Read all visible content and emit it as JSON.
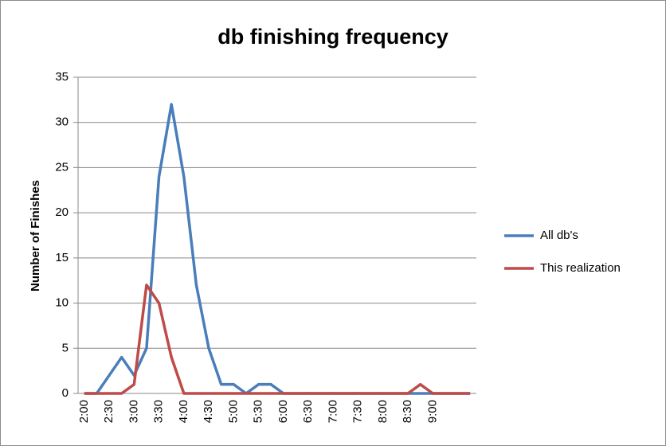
{
  "chart_data": {
    "type": "line",
    "title": "db finishing frequency",
    "y_label": "Number of Finishes",
    "categories": [
      "2:00",
      null,
      "2:30",
      null,
      "3:00",
      null,
      "3:30",
      null,
      "4:00",
      null,
      "4:30",
      null,
      "5:00",
      null,
      "5:30",
      null,
      "6:00",
      null,
      "6:30",
      null,
      "7:00",
      null,
      "7:30",
      null,
      "8:00",
      null,
      "8:30",
      null,
      "9:00",
      null,
      null,
      null
    ],
    "series": [
      {
        "name": "All db's",
        "color": "#4a7ebb",
        "values": [
          0,
          0,
          2,
          4,
          2,
          5,
          24,
          32,
          24,
          12,
          5,
          1,
          1,
          0,
          1,
          1,
          0,
          0,
          0,
          0,
          0,
          0,
          0,
          0,
          0,
          0,
          0,
          0,
          0,
          0,
          0,
          0
        ]
      },
      {
        "name": "This realization",
        "color": "#be4b48",
        "values": [
          0,
          0,
          0,
          0,
          1,
          12,
          10,
          4,
          0,
          0,
          0,
          0,
          0,
          0,
          0,
          0,
          0,
          0,
          0,
          0,
          0,
          0,
          0,
          0,
          0,
          0,
          0,
          1,
          0,
          0,
          0,
          0
        ]
      }
    ],
    "ylim": [
      0,
      35
    ],
    "yticks": [
      0,
      5,
      10,
      15,
      20,
      25,
      30,
      35
    ],
    "grid": true,
    "legend": "right"
  }
}
